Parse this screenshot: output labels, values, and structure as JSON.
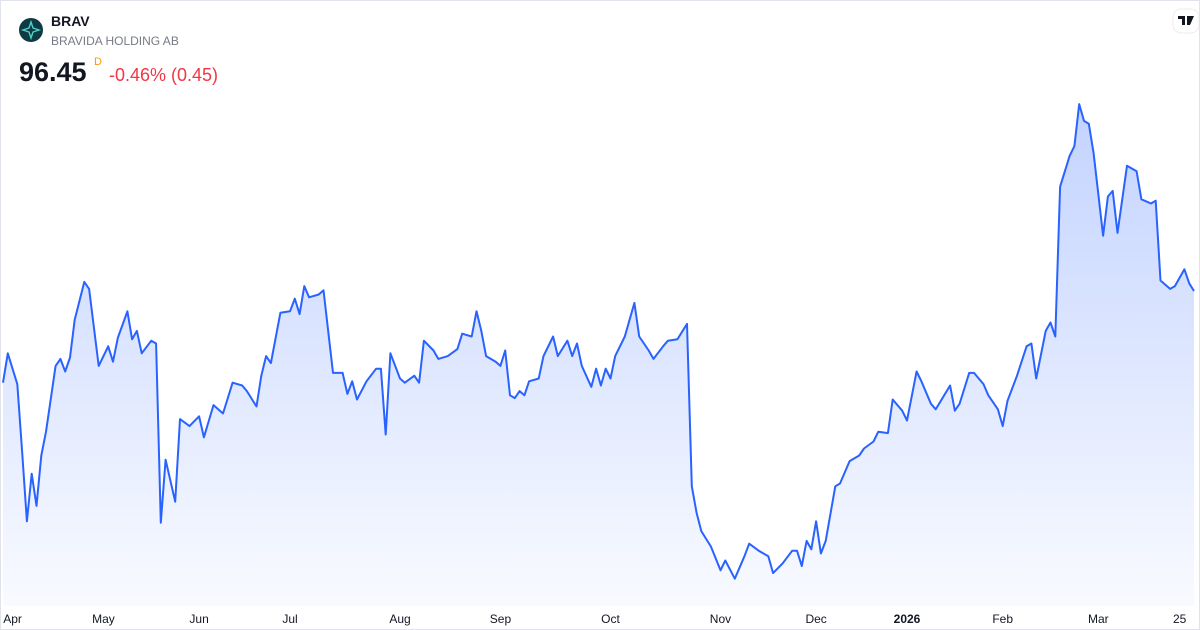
{
  "header": {
    "symbol": "BRAV",
    "name": "BRAVIDA HOLDING AB",
    "price": "96.45",
    "interval": "D",
    "change": "-0.46% (0.45)"
  },
  "chart_data": {
    "type": "area",
    "color": "#2962ff",
    "x": [
      0,
      1,
      3,
      4,
      5,
      6,
      7,
      8,
      9,
      11,
      12,
      13,
      14,
      15,
      17,
      18,
      20,
      22,
      23,
      24,
      26,
      27,
      28,
      29,
      31,
      32,
      33,
      34,
      35,
      36,
      37,
      39,
      41,
      42,
      44,
      46,
      48,
      50,
      51,
      53,
      54,
      55,
      56,
      58,
      60,
      61,
      62,
      63,
      64,
      66,
      67,
      69,
      71,
      72,
      73,
      74,
      76,
      78,
      79,
      80,
      81,
      83,
      84,
      86,
      87,
      88,
      90,
      91,
      93,
      95,
      96,
      98,
      99,
      100,
      101,
      103,
      104,
      105,
      106,
      107,
      108,
      109,
      110,
      112,
      113,
      115,
      116,
      118,
      119,
      120,
      121,
      123,
      124,
      125,
      126,
      127,
      128,
      130,
      132,
      133,
      135,
      136,
      138,
      139,
      141,
      143,
      144,
      145,
      146,
      148,
      150,
      151,
      153,
      155,
      156,
      158,
      160,
      161,
      163,
      165,
      166,
      167,
      168,
      169,
      170,
      171,
      172,
      174,
      175,
      177,
      179,
      180,
      182,
      183,
      185,
      186,
      188,
      189,
      191,
      192,
      194,
      195,
      198,
      199,
      200,
      202,
      203,
      205,
      206,
      208,
      209,
      210,
      212,
      214,
      215,
      216,
      218,
      219,
      220,
      221,
      223,
      224,
      225,
      226,
      227,
      228,
      230,
      231,
      232,
      233,
      235,
      237,
      238,
      240,
      241,
      242,
      244,
      245,
      247,
      248,
      249
    ],
    "values": [
      89.9,
      92.0,
      89.8,
      85.0,
      80.0,
      83.4,
      81.1,
      84.7,
      86.4,
      91.1,
      91.6,
      90.7,
      91.7,
      94.4,
      97.1,
      96.6,
      91.1,
      92.5,
      91.4,
      93.1,
      95.0,
      93.0,
      93.6,
      92.0,
      92.9,
      92.7,
      79.9,
      84.4,
      82.9,
      81.4,
      87.3,
      86.8,
      87.5,
      86.0,
      88.3,
      87.7,
      89.9,
      89.7,
      89.3,
      88.2,
      90.4,
      91.8,
      91.3,
      94.9,
      95.0,
      95.9,
      94.8,
      96.8,
      96.0,
      96.2,
      96.5,
      90.6,
      90.6,
      89.1,
      90.0,
      88.7,
      90.0,
      90.9,
      90.9,
      86.2,
      92.0,
      90.2,
      89.9,
      90.4,
      89.9,
      92.9,
      92.2,
      91.6,
      91.8,
      92.3,
      93.4,
      93.2,
      95.0,
      93.6,
      91.8,
      91.4,
      91.1,
      92.2,
      89.0,
      88.8,
      89.3,
      89.0,
      90.0,
      90.2,
      91.8,
      93.2,
      91.8,
      92.9,
      91.8,
      92.7,
      91.1,
      89.6,
      90.9,
      89.7,
      90.9,
      90.2,
      91.8,
      93.2,
      95.6,
      93.2,
      92.2,
      91.6,
      92.5,
      92.9,
      93.0,
      94.1,
      82.5,
      80.6,
      79.3,
      78.2,
      76.5,
      77.2,
      75.9,
      77.5,
      78.4,
      77.9,
      77.5,
      76.3,
      77.0,
      77.9,
      77.9,
      76.8,
      78.6,
      78.0,
      80.0,
      77.7,
      78.6,
      82.5,
      82.7,
      84.3,
      84.7,
      85.2,
      85.7,
      86.4,
      86.3,
      88.7,
      87.9,
      87.2,
      90.7,
      90.0,
      88.4,
      88.0,
      89.7,
      87.9,
      88.4,
      90.6,
      90.6,
      89.8,
      89.0,
      88.0,
      86.8,
      88.6,
      90.4,
      92.5,
      92.7,
      90.2,
      93.6,
      94.2,
      93.2,
      103.9,
      106.1,
      106.8,
      109.8,
      108.6,
      108.4,
      106.3,
      100.4,
      103.2,
      103.6,
      100.6,
      105.4,
      105.0,
      103.0,
      102.7,
      102.9,
      97.2,
      96.6,
      96.8,
      98.0,
      97.0,
      96.45
    ],
    "xlim": [
      0,
      249
    ],
    "ylim": [
      73.59,
      111.45
    ],
    "xticks": [
      {
        "value": 2,
        "label": "Apr"
      },
      {
        "value": 21,
        "label": "May"
      },
      {
        "value": 41,
        "label": "Jun"
      },
      {
        "value": 60,
        "label": "Jul"
      },
      {
        "value": 83,
        "label": "Aug"
      },
      {
        "value": 104,
        "label": "Sep"
      },
      {
        "value": 127,
        "label": "Oct"
      },
      {
        "value": 150,
        "label": "Nov"
      },
      {
        "value": 170,
        "label": "Dec"
      },
      {
        "value": 189,
        "label": "2026"
      },
      {
        "value": 209,
        "label": "Feb"
      },
      {
        "value": 229,
        "label": "Mar"
      },
      {
        "value": 246,
        "label": "25"
      }
    ]
  }
}
